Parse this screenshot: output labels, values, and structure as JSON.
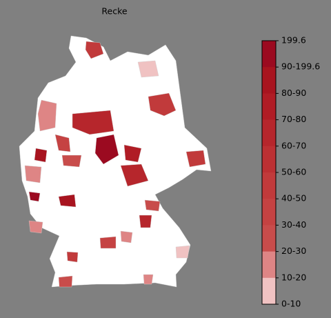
{
  "title": "Recke",
  "colorbar": {
    "labels": [
      "199.6",
      "90-199.6",
      "80-90",
      "70-80",
      "60-70",
      "50-60",
      "40-50",
      "30-40",
      "20-30",
      "10-20",
      "0-10"
    ],
    "colors": [
      "#9b0a20",
      "#a8141f",
      "#b01c25",
      "#b6262c",
      "#bc3033",
      "#c13a3b",
      "#c54242",
      "#c84c4b",
      "#de8585",
      "#f0c2c2",
      "#ffffff"
    ]
  }
}
